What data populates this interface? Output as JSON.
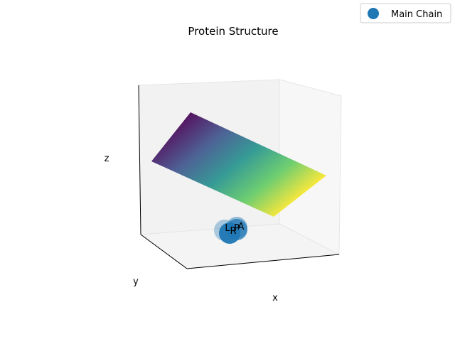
{
  "chart_data": {
    "type": "scatter",
    "title": "Protein Structure",
    "xlabel": "x",
    "ylabel": "y",
    "zlabel": "z",
    "legend": {
      "placement": "top-right",
      "entries": [
        {
          "name": "Main Chain",
          "color": "#1f77b4",
          "marker": "circle"
        }
      ]
    },
    "surface": {
      "colormap": "viridis",
      "colors": [
        "#440154",
        "#3b528b",
        "#21918c",
        "#5ec962",
        "#fde725"
      ]
    },
    "series": [
      {
        "name": "Main Chain",
        "color": "#1f77b4",
        "points": [
          {
            "label": "L"
          },
          {
            "label": "P"
          },
          {
            "label": "A"
          },
          {
            "label": "R"
          }
        ]
      }
    ],
    "grid": true,
    "projection": "3d"
  }
}
